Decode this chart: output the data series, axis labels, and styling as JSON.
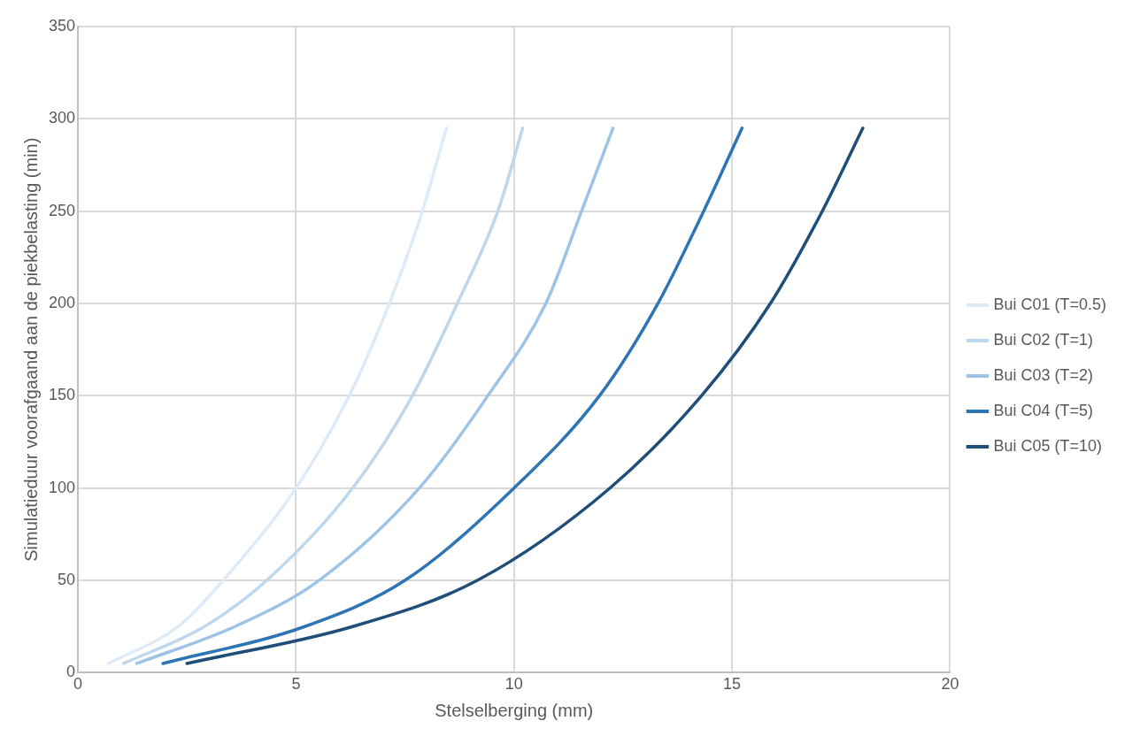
{
  "chart_data": {
    "type": "line",
    "xlabel": "Stelselberging (mm)",
    "ylabel": "Simulatieduur voorafgaand aan de piekbelasting (min)",
    "xlim": [
      0,
      20
    ],
    "xticks": [
      0,
      5,
      10,
      15,
      20
    ],
    "ylim": [
      0,
      350
    ],
    "yticks": [
      0,
      50,
      100,
      150,
      200,
      250,
      300,
      350
    ],
    "grid": true,
    "legend": "right",
    "marker": "none",
    "line_style": "solid",
    "series": [
      {
        "name": "Bui C01 (T=0.5)",
        "color": "#deebf7",
        "x": [
          0.7,
          2.3,
          3.33,
          5.0,
          6.22,
          7.14,
          7.9,
          8.45
        ],
        "values": [
          5,
          25,
          50,
          100,
          150,
          200,
          250,
          295
        ]
      },
      {
        "name": "Bui C02 (T=1)",
        "color": "#bdd7ee",
        "x": [
          1.05,
          2.9,
          4.33,
          6.3,
          7.67,
          8.7,
          9.63,
          10.2
        ],
        "values": [
          5,
          25,
          50,
          100,
          150,
          200,
          250,
          295
        ]
      },
      {
        "name": "Bui C03 (T=2)",
        "color": "#9dc3e6",
        "x": [
          1.35,
          3.6,
          5.53,
          7.83,
          9.4,
          10.73,
          11.55,
          12.27
        ],
        "values": [
          5,
          25,
          50,
          100,
          150,
          200,
          250,
          295
        ]
      },
      {
        "name": "Bui C04 (T=5)",
        "color": "#2e75b6",
        "x": [
          1.95,
          5.2,
          7.5,
          10.0,
          11.96,
          13.3,
          14.35,
          15.23
        ],
        "values": [
          5,
          25,
          50,
          100,
          150,
          200,
          250,
          295
        ]
      },
      {
        "name": "Bui C05 (T=10)",
        "color": "#1f4e79",
        "x": [
          2.5,
          6.3,
          9.16,
          12.2,
          14.3,
          15.88,
          17.07,
          18.0
        ],
        "values": [
          5,
          25,
          50,
          100,
          150,
          200,
          250,
          295
        ]
      }
    ]
  }
}
